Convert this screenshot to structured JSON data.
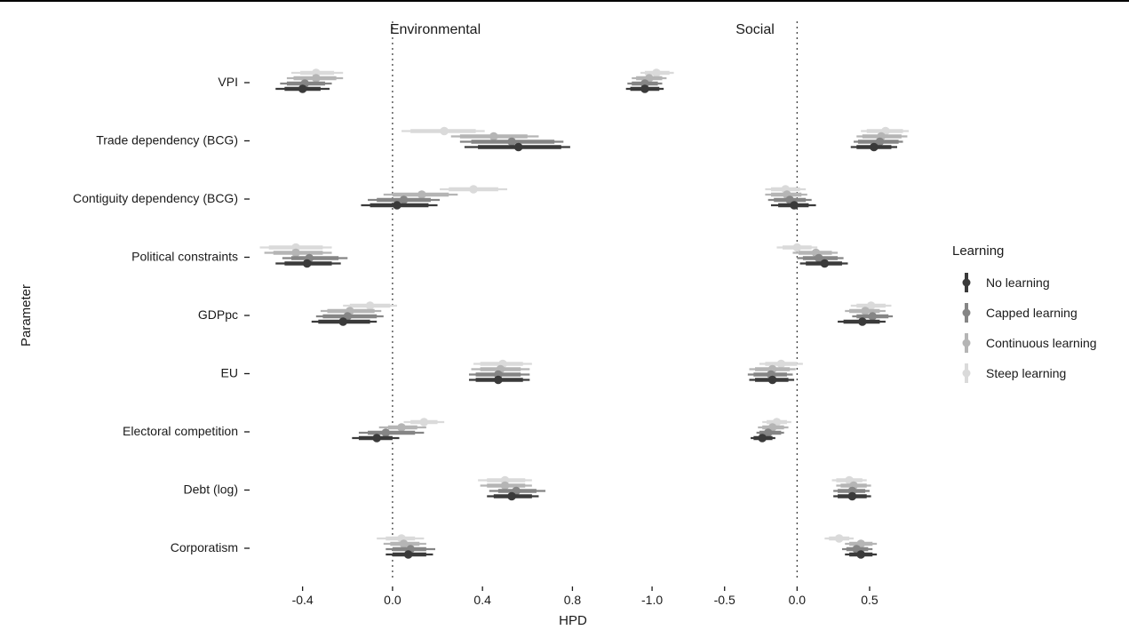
{
  "chart_data": {
    "type": "interval",
    "facets": [
      "Environmental",
      "Social"
    ],
    "parameters": [
      "VPI",
      "Trade dependency (BCG)",
      "Contiguity dependency (BCG)",
      "Political constraints",
      "GDPpc",
      "EU",
      "Electoral competition",
      "Debt (log)",
      "Corporatism"
    ],
    "ylabel": "Parameter",
    "xlabel": "HPD",
    "x_ticks": {
      "Environmental": [
        "-0.4",
        "0.0",
        "0.4",
        "0.8"
      ],
      "Social": [
        "-1.0",
        "-0.5",
        "0.0",
        "0.5"
      ]
    },
    "xlim": {
      "Environmental": [
        -0.6,
        0.98
      ],
      "Social": [
        -1.27,
        0.69
      ]
    },
    "reference_line": 0,
    "legend": {
      "title": "Learning",
      "position": "right",
      "entries": [
        "No learning",
        "Capped learning",
        "Continuous learning",
        "Steep learning"
      ]
    },
    "colors": {
      "No learning": "#3a3a3a",
      "Capped learning": "#858585",
      "Continuous learning": "#b5b5b5",
      "Steep learning": "#dadada"
    },
    "series": [
      {
        "name": "No learning",
        "Environmental": {
          "VPI": [
            -0.52,
            -0.48,
            -0.4,
            -0.32,
            -0.28
          ],
          "Trade dependency (BCG)": [
            0.32,
            0.38,
            0.56,
            0.75,
            0.79
          ],
          "Contiguity dependency (BCG)": [
            -0.14,
            -0.1,
            0.02,
            0.16,
            0.2
          ],
          "Political constraints": [
            -0.52,
            -0.48,
            -0.38,
            -0.27,
            -0.23
          ],
          "GDPpc": [
            -0.36,
            -0.33,
            -0.22,
            -0.1,
            -0.07
          ],
          "EU": [
            0.34,
            0.37,
            0.47,
            0.58,
            0.61
          ],
          "Electoral competition": [
            -0.18,
            -0.15,
            -0.07,
            0.0,
            0.03
          ],
          "Debt (log)": [
            0.42,
            0.45,
            0.53,
            0.62,
            0.65
          ],
          "Corporatism": [
            -0.03,
            0.0,
            0.07,
            0.15,
            0.18
          ]
        },
        "Social": {
          "VPI": [
            -1.18,
            -1.15,
            -1.05,
            -0.95,
            -0.92
          ],
          "Trade dependency (BCG)": [
            0.37,
            0.41,
            0.53,
            0.65,
            0.69
          ],
          "Contiguity dependency (BCG)": [
            -0.18,
            -0.13,
            -0.02,
            0.08,
            0.13
          ],
          "Political constraints": [
            0.02,
            0.06,
            0.19,
            0.31,
            0.35
          ],
          "GDPpc": [
            0.28,
            0.32,
            0.45,
            0.57,
            0.61
          ],
          "EU": [
            -0.33,
            -0.29,
            -0.17,
            -0.06,
            -0.02
          ],
          "Electoral competition": [
            -0.32,
            -0.3,
            -0.24,
            -0.17,
            -0.15
          ],
          "Debt (log)": [
            0.25,
            0.28,
            0.38,
            0.48,
            0.51
          ],
          "Corporatism": [
            0.33,
            0.36,
            0.44,
            0.52,
            0.55
          ]
        }
      },
      {
        "name": "Capped learning",
        "Environmental": {
          "VPI": [
            -0.5,
            -0.47,
            -0.39,
            -0.3,
            -0.27
          ],
          "Trade dependency (BCG)": [
            0.3,
            0.35,
            0.53,
            0.72,
            0.76
          ],
          "Contiguity dependency (BCG)": [
            -0.11,
            -0.07,
            0.05,
            0.17,
            0.21
          ],
          "Political constraints": [
            -0.49,
            -0.45,
            -0.37,
            -0.24,
            -0.2
          ],
          "GDPpc": [
            -0.34,
            -0.31,
            -0.2,
            -0.07,
            -0.04
          ],
          "EU": [
            0.34,
            0.37,
            0.47,
            0.57,
            0.61
          ],
          "Electoral competition": [
            -0.15,
            -0.11,
            -0.03,
            0.1,
            0.14
          ],
          "Debt (log)": [
            0.43,
            0.47,
            0.55,
            0.64,
            0.68
          ],
          "Corporatism": [
            -0.03,
            0.0,
            0.08,
            0.15,
            0.19
          ]
        },
        "Social": {
          "VPI": [
            -1.17,
            -1.14,
            -1.05,
            -0.96,
            -0.93
          ],
          "Trade dependency (BCG)": [
            0.39,
            0.42,
            0.57,
            0.7,
            0.73
          ],
          "Contiguity dependency (BCG)": [
            -0.2,
            -0.16,
            -0.05,
            0.06,
            0.1
          ],
          "Political constraints": [
            0.0,
            0.04,
            0.15,
            0.28,
            0.32
          ],
          "GDPpc": [
            0.38,
            0.41,
            0.52,
            0.63,
            0.66
          ],
          "EU": [
            -0.34,
            -0.3,
            -0.18,
            -0.07,
            -0.03
          ],
          "Electoral competition": [
            -0.28,
            -0.26,
            -0.2,
            -0.11,
            -0.09
          ],
          "Debt (log)": [
            0.25,
            0.28,
            0.38,
            0.47,
            0.5
          ],
          "Corporatism": [
            0.31,
            0.34,
            0.41,
            0.49,
            0.52
          ]
        }
      },
      {
        "name": "Continuous learning",
        "Environmental": {
          "VPI": [
            -0.47,
            -0.44,
            -0.34,
            -0.25,
            -0.22
          ],
          "Trade dependency (BCG)": [
            0.26,
            0.3,
            0.45,
            0.6,
            0.65
          ],
          "Contiguity dependency (BCG)": [
            -0.04,
            0.0,
            0.13,
            0.25,
            0.29
          ],
          "Political constraints": [
            -0.57,
            -0.53,
            -0.43,
            -0.31,
            -0.27
          ],
          "GDPpc": [
            -0.32,
            -0.29,
            -0.19,
            -0.08,
            -0.05
          ],
          "EU": [
            0.35,
            0.39,
            0.48,
            0.57,
            0.61
          ],
          "Electoral competition": [
            -0.06,
            -0.02,
            0.04,
            0.11,
            0.15
          ],
          "Debt (log)": [
            0.39,
            0.42,
            0.5,
            0.59,
            0.62
          ],
          "Corporatism": [
            -0.04,
            -0.01,
            0.05,
            0.12,
            0.15
          ]
        },
        "Social": {
          "VPI": [
            -1.14,
            -1.11,
            -1.02,
            -0.93,
            -0.9
          ],
          "Trade dependency (BCG)": [
            0.41,
            0.45,
            0.58,
            0.72,
            0.76
          ],
          "Contiguity dependency (BCG)": [
            -0.22,
            -0.18,
            -0.07,
            0.03,
            0.07
          ],
          "Political constraints": [
            -0.03,
            0.01,
            0.13,
            0.24,
            0.28
          ],
          "GDPpc": [
            0.33,
            0.36,
            0.47,
            0.57,
            0.61
          ],
          "EU": [
            -0.33,
            -0.29,
            -0.17,
            -0.05,
            -0.01
          ],
          "Electoral competition": [
            -0.27,
            -0.24,
            -0.17,
            -0.09,
            -0.06
          ],
          "Debt (log)": [
            0.27,
            0.3,
            0.39,
            0.48,
            0.51
          ],
          "Corporatism": [
            0.33,
            0.36,
            0.44,
            0.52,
            0.55
          ]
        }
      },
      {
        "name": "Steep learning",
        "Environmental": {
          "VPI": [
            -0.45,
            -0.41,
            -0.34,
            -0.26,
            -0.22
          ],
          "Trade dependency (BCG)": [
            0.04,
            0.08,
            0.23,
            0.37,
            0.41
          ],
          "Contiguity dependency (BCG)": [
            0.21,
            0.25,
            0.36,
            0.47,
            0.51
          ],
          "Political constraints": [
            -0.59,
            -0.55,
            -0.43,
            -0.31,
            -0.27
          ],
          "GDPpc": [
            -0.22,
            -0.19,
            -0.1,
            -0.01,
            0.02
          ],
          "EU": [
            0.36,
            0.39,
            0.49,
            0.58,
            0.62
          ],
          "Electoral competition": [
            0.05,
            0.08,
            0.14,
            0.2,
            0.23
          ],
          "Debt (log)": [
            0.38,
            0.42,
            0.5,
            0.59,
            0.62
          ],
          "Corporatism": [
            -0.07,
            -0.03,
            0.04,
            0.1,
            0.14
          ]
        },
        "Social": {
          "VPI": [
            -1.08,
            -1.05,
            -0.97,
            -0.88,
            -0.85
          ],
          "Trade dependency (BCG)": [
            0.44,
            0.48,
            0.61,
            0.73,
            0.77
          ],
          "Contiguity dependency (BCG)": [
            -0.22,
            -0.18,
            -0.08,
            0.02,
            0.06
          ],
          "Political constraints": [
            -0.14,
            -0.1,
            0.0,
            0.1,
            0.14
          ],
          "GDPpc": [
            0.37,
            0.41,
            0.51,
            0.61,
            0.65
          ],
          "EU": [
            -0.26,
            -0.22,
            -0.11,
            0.0,
            0.04
          ],
          "Electoral competition": [
            -0.24,
            -0.21,
            -0.14,
            -0.07,
            -0.04
          ],
          "Debt (log)": [
            0.24,
            0.27,
            0.36,
            0.45,
            0.48
          ],
          "Corporatism": [
            0.19,
            0.22,
            0.29,
            0.36,
            0.39
          ]
        }
      }
    ]
  }
}
